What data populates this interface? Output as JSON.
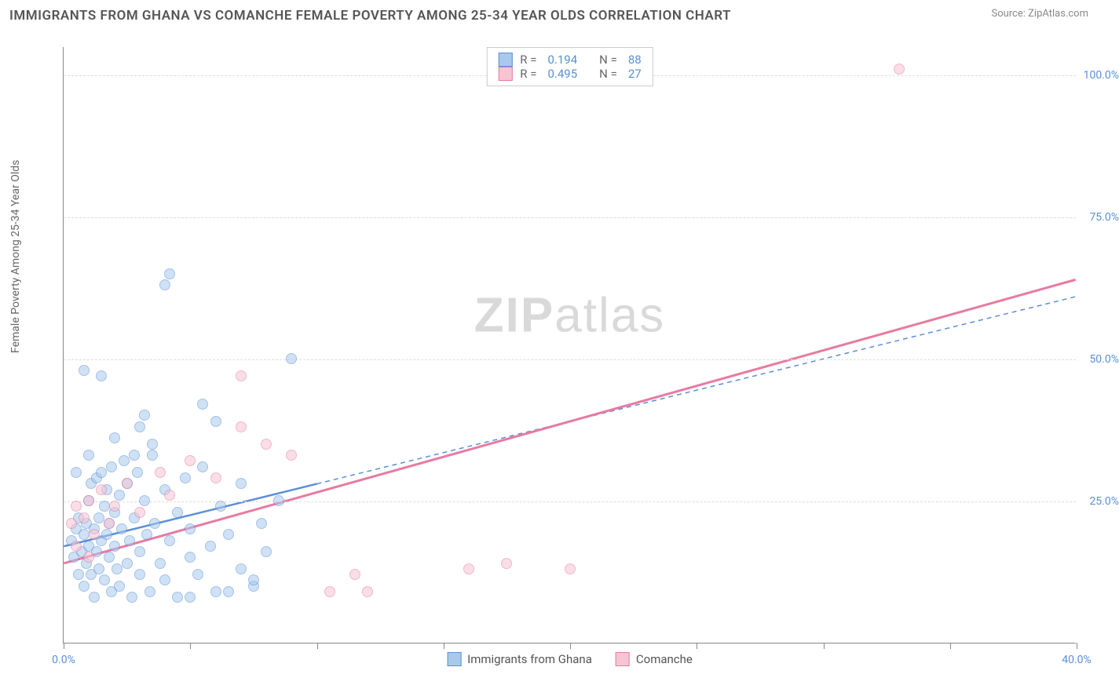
{
  "title": "IMMIGRANTS FROM GHANA VS COMANCHE FEMALE POVERTY AMONG 25-34 YEAR OLDS CORRELATION CHART",
  "source": "Source: ZipAtlas.com",
  "yaxis_label": "Female Poverty Among 25-34 Year Olds",
  "watermark": {
    "prefix": "ZIP",
    "suffix": "atlas"
  },
  "chart": {
    "type": "scatter",
    "xlim": [
      0,
      40
    ],
    "ylim": [
      0,
      105
    ],
    "xticks": [
      0,
      5,
      10,
      15,
      20,
      25,
      30,
      35,
      40
    ],
    "xtick_labels": {
      "0": "0.0%",
      "40": "40.0%"
    },
    "yticks": [
      25,
      50,
      75,
      100
    ],
    "ytick_labels": [
      "25.0%",
      "50.0%",
      "75.0%",
      "100.0%"
    ],
    "background_color": "#ffffff",
    "grid_color": "#dddddd",
    "axis_color": "#888888",
    "tick_label_color": "#5b8fd6",
    "marker_radius": 7,
    "marker_opacity": 0.55
  },
  "series": [
    {
      "name": "Immigrants from Ghana",
      "color_fill": "#a9c9ec",
      "color_stroke": "#5b8fd6",
      "R": "0.194",
      "N": "88",
      "trend": {
        "x1": 0,
        "y1": 17,
        "x2": 10,
        "y2": 28,
        "dash_x2": 40,
        "dash_y2": 61,
        "solid_width": 2.5,
        "dash": "6,5"
      },
      "points": [
        [
          0.3,
          18
        ],
        [
          0.4,
          15
        ],
        [
          0.5,
          20
        ],
        [
          0.6,
          22
        ],
        [
          0.6,
          12
        ],
        [
          0.7,
          16
        ],
        [
          0.8,
          19
        ],
        [
          0.8,
          10
        ],
        [
          0.9,
          21
        ],
        [
          0.9,
          14
        ],
        [
          1.0,
          17
        ],
        [
          1.0,
          25
        ],
        [
          1.1,
          12
        ],
        [
          1.1,
          28
        ],
        [
          1.2,
          20
        ],
        [
          1.2,
          8
        ],
        [
          1.3,
          29
        ],
        [
          1.3,
          16
        ],
        [
          1.4,
          22
        ],
        [
          1.4,
          13
        ],
        [
          1.5,
          30
        ],
        [
          1.5,
          18
        ],
        [
          1.6,
          24
        ],
        [
          1.6,
          11
        ],
        [
          1.7,
          19
        ],
        [
          1.7,
          27
        ],
        [
          1.8,
          15
        ],
        [
          1.8,
          21
        ],
        [
          1.9,
          9
        ],
        [
          1.9,
          31
        ],
        [
          2.0,
          23
        ],
        [
          2.0,
          17
        ],
        [
          2.1,
          13
        ],
        [
          2.2,
          26
        ],
        [
          2.2,
          10
        ],
        [
          2.3,
          20
        ],
        [
          2.4,
          32
        ],
        [
          2.5,
          14
        ],
        [
          2.5,
          28
        ],
        [
          2.6,
          18
        ],
        [
          2.7,
          8
        ],
        [
          2.8,
          22
        ],
        [
          2.9,
          30
        ],
        [
          3.0,
          16
        ],
        [
          3.0,
          12
        ],
        [
          3.2,
          25
        ],
        [
          3.3,
          19
        ],
        [
          3.4,
          9
        ],
        [
          3.5,
          33
        ],
        [
          3.6,
          21
        ],
        [
          3.8,
          14
        ],
        [
          4.0,
          27
        ],
        [
          4.0,
          11
        ],
        [
          4.2,
          18
        ],
        [
          4.5,
          23
        ],
        [
          4.5,
          8
        ],
        [
          4.8,
          29
        ],
        [
          5.0,
          15
        ],
        [
          5.0,
          20
        ],
        [
          5.3,
          12
        ],
        [
          5.5,
          31
        ],
        [
          5.8,
          17
        ],
        [
          6.0,
          9
        ],
        [
          6.2,
          24
        ],
        [
          6.5,
          19
        ],
        [
          7.0,
          13
        ],
        [
          7.0,
          28
        ],
        [
          7.5,
          10
        ],
        [
          7.8,
          21
        ],
        [
          8.0,
          16
        ],
        [
          8.5,
          25
        ],
        [
          9.0,
          50
        ],
        [
          0.8,
          48
        ],
        [
          1.5,
          47
        ],
        [
          2.0,
          36
        ],
        [
          3.0,
          38
        ],
        [
          3.2,
          40
        ],
        [
          4.0,
          63
        ],
        [
          4.2,
          65
        ],
        [
          5.5,
          42
        ],
        [
          6.0,
          39
        ],
        [
          2.8,
          33
        ],
        [
          3.5,
          35
        ],
        [
          1.0,
          33
        ],
        [
          0.5,
          30
        ],
        [
          5.0,
          8
        ],
        [
          6.5,
          9
        ],
        [
          7.5,
          11
        ]
      ]
    },
    {
      "name": "Comanche",
      "color_fill": "#f6c4d2",
      "color_stroke": "#e77ba2",
      "R": "0.495",
      "N": "27",
      "trend": {
        "x1": 0,
        "y1": 14,
        "x2": 40,
        "y2": 64,
        "solid_width": 3
      },
      "points": [
        [
          0.3,
          21
        ],
        [
          0.5,
          24
        ],
        [
          0.5,
          17
        ],
        [
          0.8,
          22
        ],
        [
          1.0,
          25
        ],
        [
          1.2,
          19
        ],
        [
          1.5,
          27
        ],
        [
          1.8,
          21
        ],
        [
          2.0,
          24
        ],
        [
          2.5,
          28
        ],
        [
          3.0,
          23
        ],
        [
          3.8,
          30
        ],
        [
          4.2,
          26
        ],
        [
          5.0,
          32
        ],
        [
          6.0,
          29
        ],
        [
          7.0,
          47
        ],
        [
          7.0,
          38
        ],
        [
          8.0,
          35
        ],
        [
          9.0,
          33
        ],
        [
          10.5,
          9
        ],
        [
          11.5,
          12
        ],
        [
          12.0,
          9
        ],
        [
          16.0,
          13
        ],
        [
          17.5,
          14
        ],
        [
          20.0,
          13
        ],
        [
          33.0,
          101
        ],
        [
          1.0,
          15
        ]
      ]
    }
  ],
  "legend_bottom": [
    {
      "label": "Immigrants from Ghana",
      "fill": "#a9c9ec",
      "stroke": "#5b8fd6"
    },
    {
      "label": "Comanche",
      "fill": "#f6c4d2",
      "stroke": "#e77ba2"
    }
  ]
}
